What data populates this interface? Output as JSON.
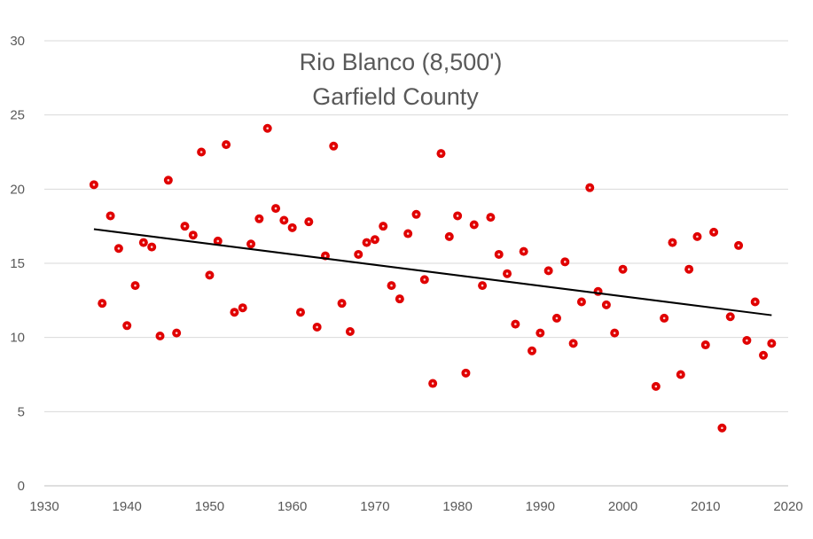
{
  "chart_data": {
    "type": "scatter",
    "title": [
      "Rio Blanco (8,500')",
      "Garfield County"
    ],
    "xlabel": "",
    "ylabel": "",
    "xlim": [
      1930,
      2020
    ],
    "ylim": [
      0,
      30
    ],
    "xticks": [
      1930,
      1940,
      1950,
      1960,
      1970,
      1980,
      1990,
      2000,
      2010,
      2020
    ],
    "yticks": [
      0,
      5,
      10,
      15,
      20,
      25,
      30
    ],
    "grid": "horizontal",
    "legend": "none",
    "marker_color": "#e00000",
    "trendline_color": "#000000",
    "trendline": {
      "x": [
        1936,
        2018
      ],
      "y": [
        17.3,
        11.5
      ]
    },
    "x": [
      1936,
      1937,
      1938,
      1939,
      1940,
      1941,
      1942,
      1943,
      1944,
      1945,
      1946,
      1947,
      1948,
      1949,
      1950,
      1951,
      1952,
      1953,
      1954,
      1955,
      1956,
      1957,
      1958,
      1959,
      1960,
      1961,
      1962,
      1963,
      1964,
      1965,
      1966,
      1967,
      1968,
      1969,
      1970,
      1971,
      1972,
      1973,
      1974,
      1975,
      1976,
      1977,
      1978,
      1979,
      1980,
      1981,
      1982,
      1983,
      1984,
      1985,
      1986,
      1987,
      1988,
      1989,
      1990,
      1991,
      1992,
      1993,
      1994,
      1995,
      1996,
      1997,
      1998,
      1999,
      2000,
      2004,
      2005,
      2006,
      2007,
      2008,
      2009,
      2010,
      2011,
      2012,
      2013,
      2014,
      2015,
      2016,
      2017,
      2018
    ],
    "y": [
      20.3,
      12.3,
      18.2,
      16.0,
      10.8,
      13.5,
      16.4,
      16.1,
      10.1,
      20.6,
      10.3,
      17.5,
      16.9,
      22.5,
      14.2,
      16.5,
      23.0,
      11.7,
      12.0,
      16.3,
      18.0,
      24.1,
      18.7,
      17.9,
      17.4,
      11.7,
      17.8,
      10.7,
      15.5,
      22.9,
      12.3,
      10.4,
      15.6,
      16.4,
      16.6,
      17.5,
      13.5,
      12.6,
      17.0,
      18.3,
      13.9,
      6.9,
      22.4,
      16.8,
      18.2,
      7.6,
      17.6,
      13.5,
      18.1,
      15.6,
      14.3,
      10.9,
      15.8,
      9.1,
      10.3,
      14.5,
      11.3,
      15.1,
      9.6,
      12.4,
      20.1,
      13.1,
      12.2,
      10.3,
      14.6,
      6.7,
      11.3,
      16.4,
      7.5,
      14.6,
      16.8,
      9.5,
      17.1,
      3.9,
      11.4,
      16.2,
      9.8,
      12.4,
      8.8,
      9.6
    ]
  }
}
